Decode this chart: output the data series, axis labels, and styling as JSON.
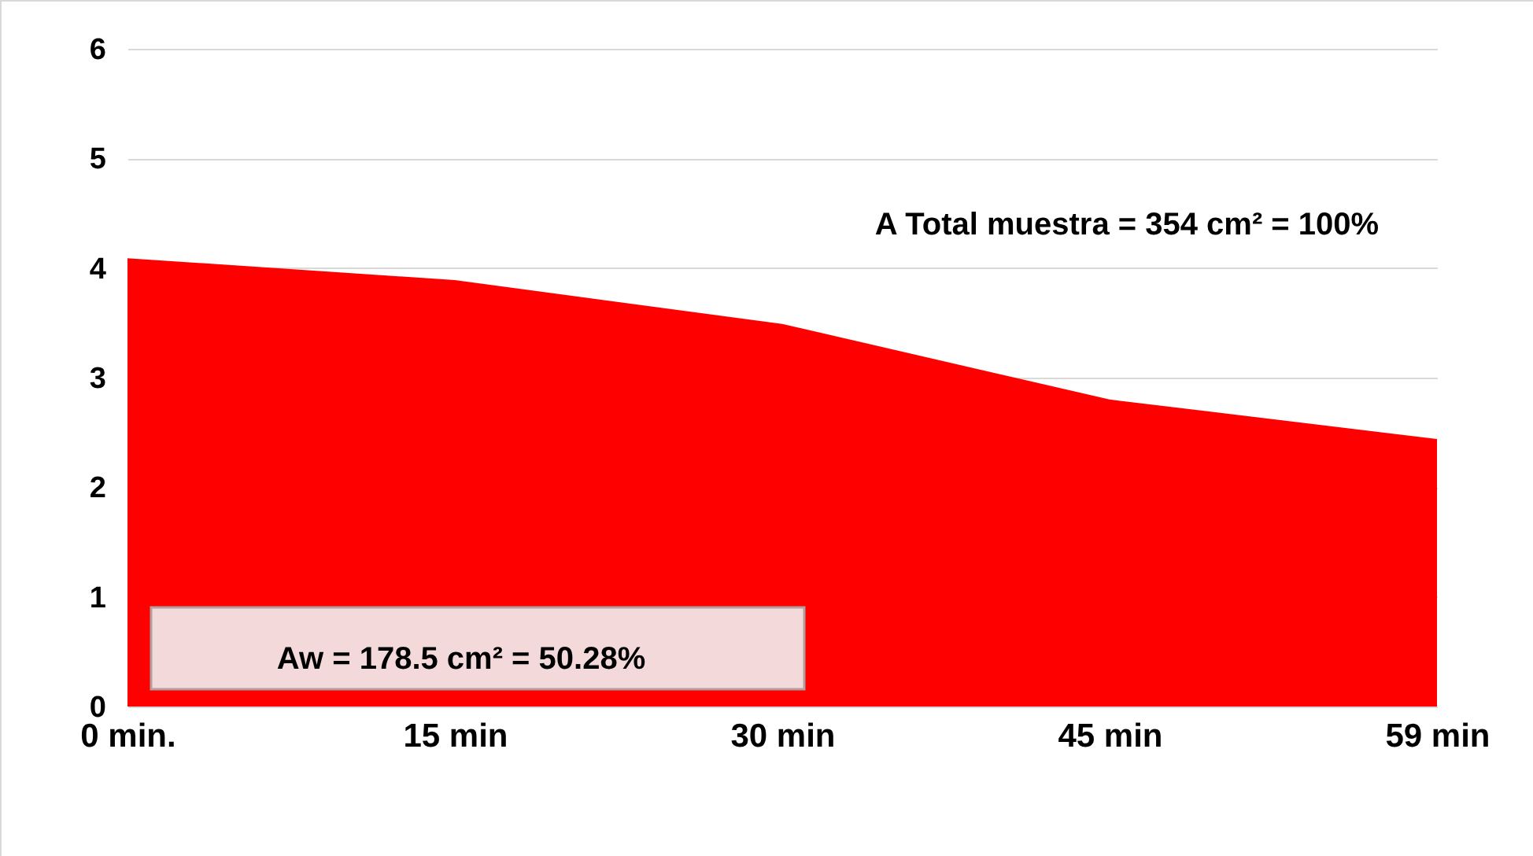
{
  "chart_data": {
    "type": "area",
    "categories": [
      "0 min.",
      "15 min",
      "30 min",
      "45 min",
      "59 min"
    ],
    "series": [
      {
        "color": "#ff0000",
        "values": [
          4.09,
          3.89,
          3.49,
          2.8,
          2.44
        ]
      }
    ],
    "ylim": [
      0,
      6
    ],
    "yticks": [
      0,
      1,
      2,
      3,
      4,
      5,
      6
    ],
    "grid": "y",
    "annotations": [
      "A Total muestra = 354 cm² = 100%",
      "Aw = 178.5 cm² = 50.28%"
    ]
  }
}
